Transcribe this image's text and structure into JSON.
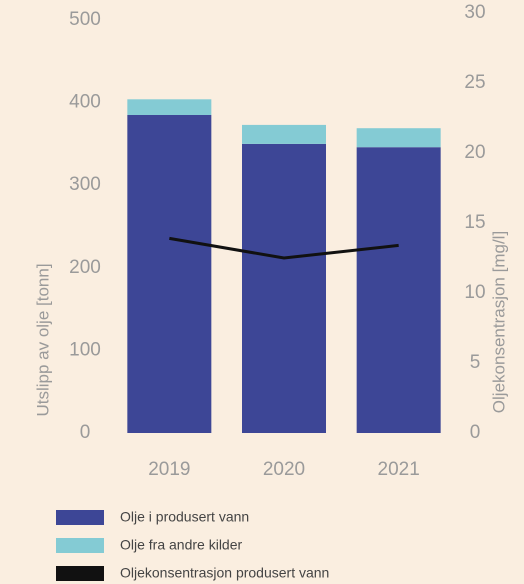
{
  "chart_data": {
    "type": "bar",
    "stacked": true,
    "categories": [
      "2019",
      "2020",
      "2021"
    ],
    "series": [
      {
        "name": "Olje i produsert vann",
        "color": "#3d4696",
        "values": [
          385,
          350,
          346
        ]
      },
      {
        "name": "Olje fra andre kilder",
        "color": "#84cbd4",
        "values": [
          19,
          23,
          23
        ]
      },
      {
        "name": "Oljekonsentrasjon produsert vann",
        "color": "#111111",
        "type": "line",
        "axis": "y2",
        "values": [
          13.9,
          12.5,
          13.4
        ]
      }
    ],
    "ylabel": "Utslipp av olje [tonn]",
    "y2label": "Oljekonsentrasjon [mg/l]",
    "ylim": [
      0,
      500
    ],
    "yticks": [
      0,
      100,
      200,
      300,
      400,
      500
    ],
    "y2lim": [
      0,
      30
    ],
    "y2ticks": [
      0,
      5,
      10,
      15,
      20,
      25,
      30
    ],
    "legend": "bottom"
  }
}
